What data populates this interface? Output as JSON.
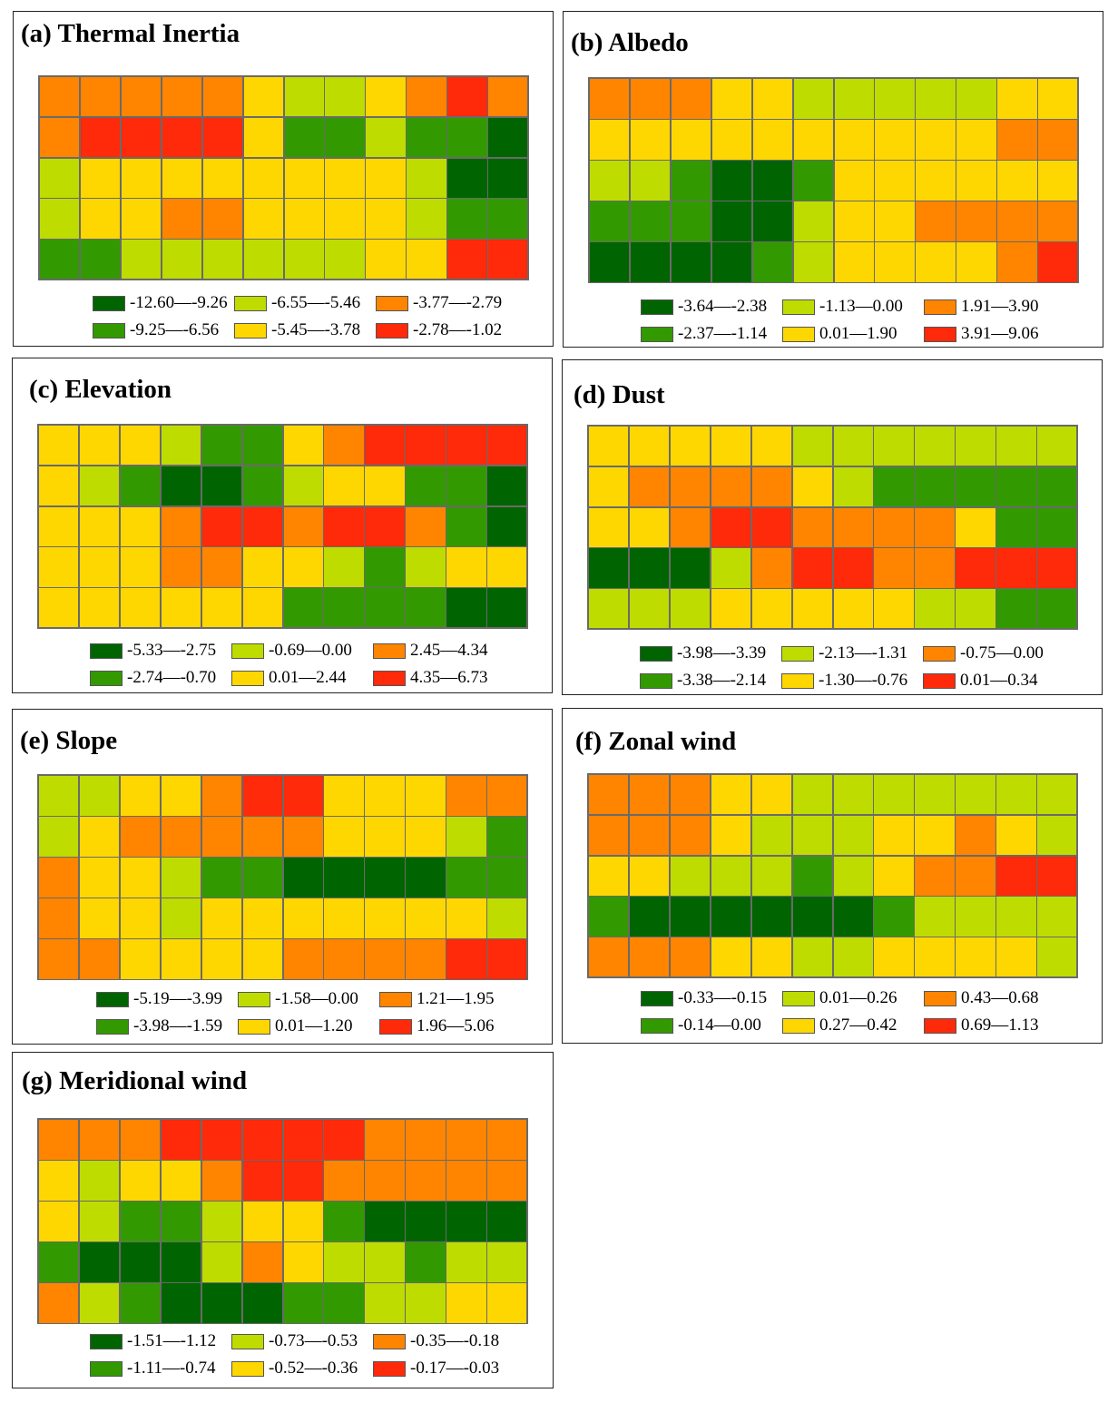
{
  "colors": {
    "c1": "#006400",
    "c2": "#339900",
    "c3": "#bedc00",
    "c4": "#ffd700",
    "c5": "#ff8500",
    "c6": "#ff2a0a"
  },
  "chart_data": [
    {
      "type": "heatmap",
      "title": "(a) Thermal Inertia",
      "rows": 5,
      "cols": 12,
      "class_grid": [
        [
          5,
          5,
          5,
          5,
          5,
          4,
          3,
          3,
          4,
          5,
          6,
          5
        ],
        [
          5,
          6,
          6,
          6,
          6,
          4,
          2,
          2,
          3,
          2,
          2,
          1
        ],
        [
          3,
          4,
          4,
          4,
          4,
          4,
          4,
          4,
          4,
          3,
          1,
          1
        ],
        [
          3,
          4,
          4,
          5,
          5,
          4,
          4,
          4,
          4,
          3,
          2,
          2
        ],
        [
          2,
          2,
          3,
          3,
          3,
          3,
          3,
          3,
          4,
          4,
          6,
          6
        ]
      ],
      "legend": [
        "-12.60—-9.26",
        "-9.25—-6.56",
        "-6.55—-5.46",
        "-5.45—-3.78",
        "-3.77—-2.79",
        "-2.78—-1.02"
      ]
    },
    {
      "type": "heatmap",
      "title": "(b) Albedo",
      "rows": 5,
      "cols": 12,
      "class_grid": [
        [
          5,
          5,
          5,
          4,
          4,
          3,
          3,
          3,
          3,
          3,
          4,
          4
        ],
        [
          4,
          4,
          4,
          4,
          4,
          4,
          4,
          4,
          4,
          4,
          5,
          5
        ],
        [
          3,
          3,
          2,
          1,
          1,
          2,
          4,
          4,
          4,
          4,
          4,
          4
        ],
        [
          2,
          2,
          2,
          1,
          1,
          3,
          4,
          4,
          5,
          5,
          5,
          5
        ],
        [
          1,
          1,
          1,
          1,
          2,
          3,
          4,
          4,
          4,
          4,
          5,
          6
        ]
      ],
      "legend": [
        "-3.64—-2.38",
        "-2.37—-1.14",
        "-1.13—0.00",
        "0.01—1.90",
        "1.91—3.90",
        "3.91—9.06"
      ]
    },
    {
      "type": "heatmap",
      "title": "(c) Elevation",
      "rows": 5,
      "cols": 12,
      "class_grid": [
        [
          4,
          4,
          4,
          3,
          2,
          2,
          4,
          5,
          6,
          6,
          6,
          6
        ],
        [
          4,
          3,
          2,
          1,
          1,
          2,
          3,
          4,
          4,
          2,
          2,
          1
        ],
        [
          4,
          4,
          4,
          5,
          6,
          6,
          5,
          6,
          6,
          5,
          2,
          1
        ],
        [
          4,
          4,
          4,
          5,
          5,
          4,
          4,
          3,
          2,
          3,
          4,
          4
        ],
        [
          4,
          4,
          4,
          4,
          4,
          4,
          2,
          2,
          2,
          2,
          1,
          1
        ]
      ],
      "legend": [
        "-5.33—-2.75",
        "-2.74—-0.70",
        "-0.69—0.00",
        "0.01—2.44",
        "2.45—4.34",
        "4.35—6.73"
      ]
    },
    {
      "type": "heatmap",
      "title": "(d) Dust",
      "rows": 5,
      "cols": 12,
      "class_grid": [
        [
          4,
          4,
          4,
          4,
          4,
          3,
          3,
          3,
          3,
          3,
          3,
          3
        ],
        [
          4,
          5,
          5,
          5,
          5,
          4,
          3,
          2,
          2,
          2,
          2,
          2
        ],
        [
          4,
          4,
          5,
          6,
          6,
          5,
          5,
          5,
          5,
          4,
          2,
          2
        ],
        [
          1,
          1,
          1,
          3,
          5,
          6,
          6,
          5,
          5,
          6,
          6,
          6
        ],
        [
          3,
          3,
          3,
          4,
          4,
          4,
          4,
          4,
          3,
          3,
          2,
          2
        ]
      ],
      "legend": [
        "-3.98—-3.39",
        "-3.38—-2.14",
        "-2.13—-1.31",
        "-1.30—-0.76",
        "-0.75—0.00",
        "0.01—0.34"
      ]
    },
    {
      "type": "heatmap",
      "title": "(e) Slope",
      "rows": 5,
      "cols": 12,
      "class_grid": [
        [
          3,
          3,
          4,
          4,
          5,
          6,
          6,
          4,
          4,
          4,
          5,
          5
        ],
        [
          3,
          4,
          5,
          5,
          5,
          5,
          5,
          4,
          4,
          4,
          3,
          2
        ],
        [
          5,
          4,
          4,
          3,
          2,
          2,
          1,
          1,
          1,
          1,
          2,
          2
        ],
        [
          5,
          4,
          4,
          3,
          4,
          4,
          4,
          4,
          4,
          4,
          4,
          3
        ],
        [
          5,
          5,
          4,
          4,
          4,
          4,
          5,
          5,
          5,
          5,
          6,
          6
        ]
      ],
      "legend": [
        "-5.19—-3.99",
        "-3.98—-1.59",
        "-1.58—0.00",
        "0.01—1.20",
        "1.21—1.95",
        "1.96—5.06"
      ]
    },
    {
      "type": "heatmap",
      "title": "(f) Zonal wind",
      "rows": 5,
      "cols": 12,
      "class_grid": [
        [
          5,
          5,
          5,
          4,
          4,
          3,
          3,
          3,
          3,
          3,
          3,
          3
        ],
        [
          5,
          5,
          5,
          4,
          3,
          3,
          3,
          4,
          4,
          5,
          4,
          3
        ],
        [
          4,
          4,
          3,
          3,
          3,
          2,
          3,
          4,
          5,
          5,
          6,
          6
        ],
        [
          2,
          1,
          1,
          1,
          1,
          1,
          1,
          2,
          3,
          3,
          3,
          3
        ],
        [
          5,
          5,
          5,
          4,
          4,
          3,
          3,
          4,
          4,
          4,
          4,
          3
        ]
      ],
      "legend": [
        "-0.33—-0.15",
        "-0.14—0.00",
        "0.01—0.26",
        "0.27—0.42",
        "0.43—0.68",
        "0.69—1.13"
      ]
    },
    {
      "type": "heatmap",
      "title": "(g) Meridional wind",
      "rows": 5,
      "cols": 12,
      "class_grid": [
        [
          5,
          5,
          5,
          6,
          6,
          6,
          6,
          6,
          5,
          5,
          5,
          5
        ],
        [
          4,
          3,
          4,
          4,
          5,
          6,
          6,
          5,
          5,
          5,
          5,
          5
        ],
        [
          4,
          3,
          2,
          2,
          3,
          4,
          4,
          2,
          1,
          1,
          1,
          1
        ],
        [
          2,
          1,
          1,
          1,
          3,
          5,
          4,
          3,
          3,
          2,
          3,
          3
        ],
        [
          5,
          3,
          2,
          1,
          1,
          1,
          2,
          2,
          3,
          3,
          4,
          4
        ]
      ],
      "legend": [
        "-1.51—-1.12",
        "-1.11—-0.74",
        "-0.73—-0.53",
        "-0.52—-0.36",
        "-0.35—-0.18",
        "-0.17—-0.03"
      ]
    }
  ]
}
